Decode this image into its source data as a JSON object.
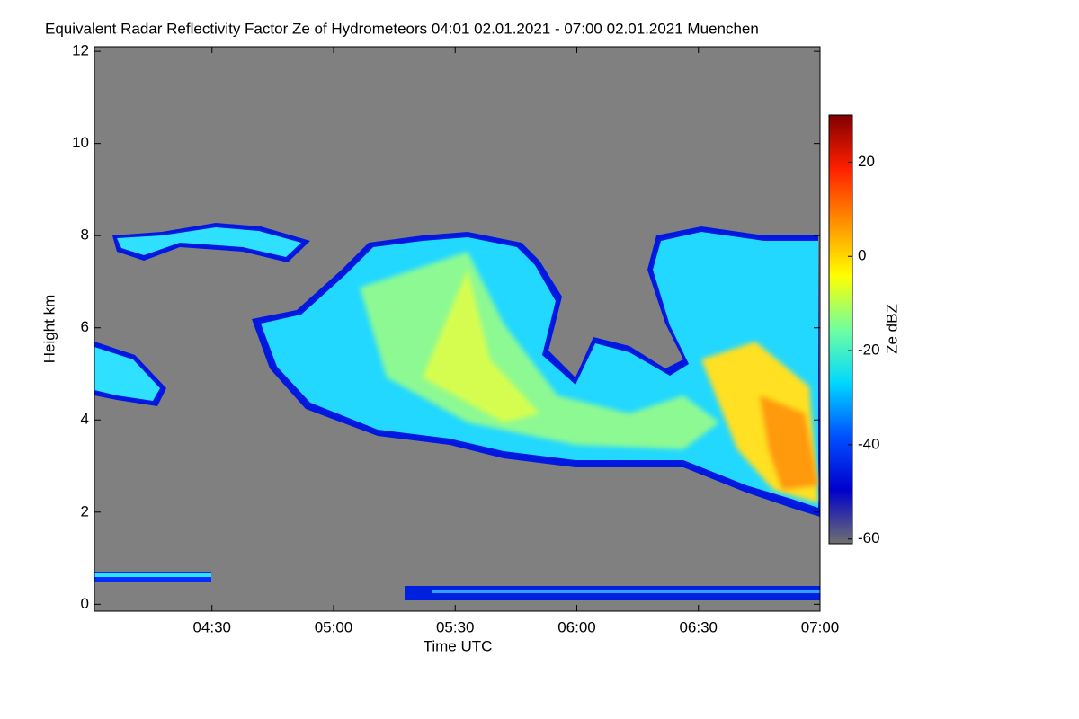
{
  "chart_data": {
    "type": "heatmap",
    "title": "Equivalent Radar Reflectivity Factor Ze of Hydrometeors   04:01 02.01.2021 - 07:00 02.01.2021 Muenchen",
    "x_label": "Time UTC",
    "y_label": "Height km",
    "xlim": [
      "04:01",
      "07:00"
    ],
    "xticks": [
      "04:30",
      "05:00",
      "05:30",
      "06:00",
      "06:30",
      "07:00"
    ],
    "ylim": [
      -0.15,
      12.1
    ],
    "yticks": [
      0,
      2,
      4,
      6,
      8,
      10,
      12
    ],
    "colorbar_label": "Ze dBZ",
    "clim": [
      -61,
      30
    ],
    "colorbar_ticks": [
      -60,
      -40,
      -20,
      0,
      20
    ],
    "colormap": [
      "#707070",
      "#0000cc",
      "#0050ff",
      "#00d8ff",
      "#70ffa0",
      "#ffff00",
      "#ff9000",
      "#ff2000",
      "#800000"
    ],
    "background": "#808080"
  }
}
